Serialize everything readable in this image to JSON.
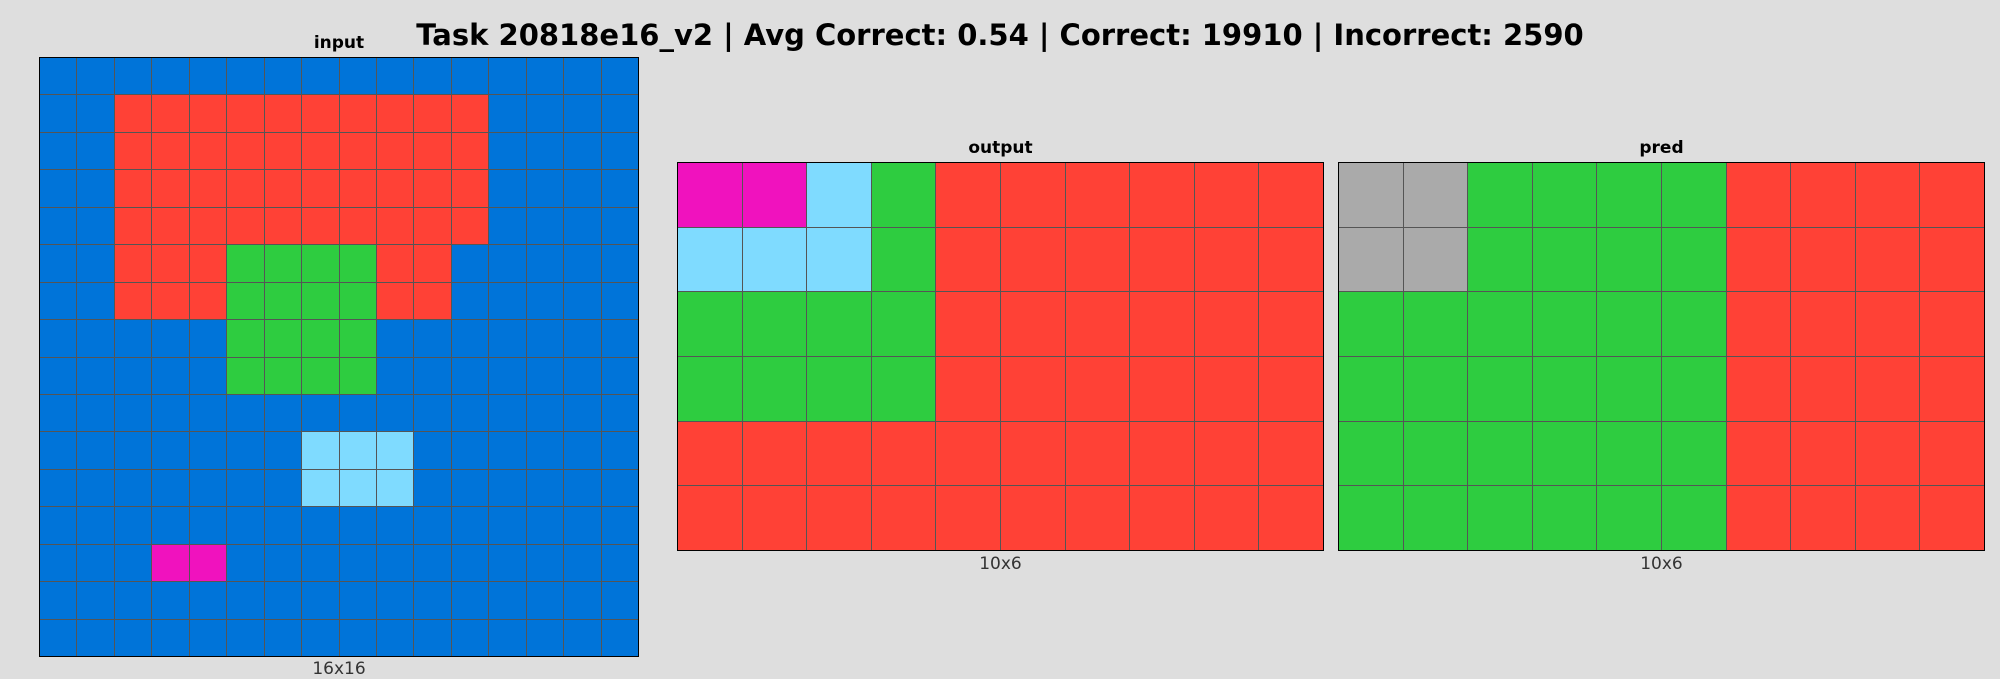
{
  "title": "Task 20818e16_v2 | Avg Correct: 0.54 | Correct: 19910 | Incorrect: 2590",
  "palette": {
    "0": "#000000",
    "1": "#0074d9",
    "2": "#ff4136",
    "3": "#2ecc40",
    "4": "#ffdc00",
    "5": "#aaaaaa",
    "6": "#f012be",
    "7": "#ff851b",
    "8": "#7fdbff",
    "9": "#870c25"
  },
  "panels": [
    {
      "title": "input",
      "size_label": "16x16",
      "grid": [
        [
          1,
          1,
          1,
          1,
          1,
          1,
          1,
          1,
          1,
          1,
          1,
          1,
          1,
          1,
          1,
          1
        ],
        [
          1,
          1,
          2,
          2,
          2,
          2,
          2,
          2,
          2,
          2,
          2,
          2,
          1,
          1,
          1,
          1
        ],
        [
          1,
          1,
          2,
          2,
          2,
          2,
          2,
          2,
          2,
          2,
          2,
          2,
          1,
          1,
          1,
          1
        ],
        [
          1,
          1,
          2,
          2,
          2,
          2,
          2,
          2,
          2,
          2,
          2,
          2,
          1,
          1,
          1,
          1
        ],
        [
          1,
          1,
          2,
          2,
          2,
          2,
          2,
          2,
          2,
          2,
          2,
          2,
          1,
          1,
          1,
          1
        ],
        [
          1,
          1,
          2,
          2,
          2,
          3,
          3,
          3,
          3,
          2,
          2,
          1,
          1,
          1,
          1,
          1
        ],
        [
          1,
          1,
          2,
          2,
          2,
          3,
          3,
          3,
          3,
          2,
          2,
          1,
          1,
          1,
          1,
          1
        ],
        [
          1,
          1,
          1,
          1,
          1,
          3,
          3,
          3,
          3,
          1,
          1,
          1,
          1,
          1,
          1,
          1
        ],
        [
          1,
          1,
          1,
          1,
          1,
          3,
          3,
          3,
          3,
          1,
          1,
          1,
          1,
          1,
          1,
          1
        ],
        [
          1,
          1,
          1,
          1,
          1,
          1,
          1,
          1,
          1,
          1,
          1,
          1,
          1,
          1,
          1,
          1
        ],
        [
          1,
          1,
          1,
          1,
          1,
          1,
          1,
          8,
          8,
          8,
          1,
          1,
          1,
          1,
          1,
          1
        ],
        [
          1,
          1,
          1,
          1,
          1,
          1,
          1,
          8,
          8,
          8,
          1,
          1,
          1,
          1,
          1,
          1
        ],
        [
          1,
          1,
          1,
          1,
          1,
          1,
          1,
          1,
          1,
          1,
          1,
          1,
          1,
          1,
          1,
          1
        ],
        [
          1,
          1,
          1,
          6,
          6,
          1,
          1,
          1,
          1,
          1,
          1,
          1,
          1,
          1,
          1,
          1
        ],
        [
          1,
          1,
          1,
          1,
          1,
          1,
          1,
          1,
          1,
          1,
          1,
          1,
          1,
          1,
          1,
          1
        ],
        [
          1,
          1,
          1,
          1,
          1,
          1,
          1,
          1,
          1,
          1,
          1,
          1,
          1,
          1,
          1,
          1
        ]
      ]
    },
    {
      "title": "output",
      "size_label": "10x6",
      "grid": [
        [
          6,
          6,
          8,
          3,
          2,
          2,
          2,
          2,
          2,
          2
        ],
        [
          8,
          8,
          8,
          3,
          2,
          2,
          2,
          2,
          2,
          2
        ],
        [
          3,
          3,
          3,
          3,
          2,
          2,
          2,
          2,
          2,
          2
        ],
        [
          3,
          3,
          3,
          3,
          2,
          2,
          2,
          2,
          2,
          2
        ],
        [
          2,
          2,
          2,
          2,
          2,
          2,
          2,
          2,
          2,
          2
        ],
        [
          2,
          2,
          2,
          2,
          2,
          2,
          2,
          2,
          2,
          2
        ]
      ]
    },
    {
      "title": "pred",
      "size_label": "10x6",
      "grid": [
        [
          5,
          5,
          3,
          3,
          3,
          3,
          2,
          2,
          2,
          2
        ],
        [
          5,
          5,
          3,
          3,
          3,
          3,
          2,
          2,
          2,
          2
        ],
        [
          3,
          3,
          3,
          3,
          3,
          3,
          2,
          2,
          2,
          2
        ],
        [
          3,
          3,
          3,
          3,
          3,
          3,
          2,
          2,
          2,
          2
        ],
        [
          3,
          3,
          3,
          3,
          3,
          3,
          2,
          2,
          2,
          2
        ],
        [
          3,
          3,
          3,
          3,
          3,
          3,
          2,
          2,
          2,
          2
        ]
      ]
    }
  ]
}
